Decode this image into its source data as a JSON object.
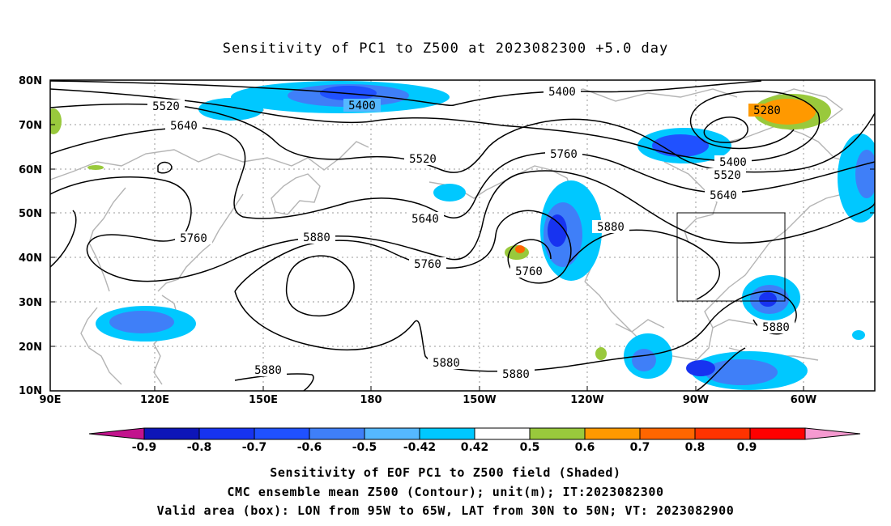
{
  "title": "Sensitivity of PC1 to Z500 at 2023082300 +5.0 day",
  "lat_labels": [
    "80N",
    "70N",
    "60N",
    "50N",
    "40N",
    "30N",
    "20N",
    "10N"
  ],
  "lon_labels": [
    "90E",
    "120E",
    "150E",
    "180",
    "150W",
    "120W",
    "90W",
    "60W"
  ],
  "contour_labels": [
    "5400",
    "5520",
    "5640",
    "5400",
    "5520",
    "5760",
    "5280",
    "5400",
    "5520",
    "5640",
    "5760",
    "5880",
    "5640",
    "5760",
    "5880",
    "5760",
    "5880",
    "5880",
    "5880",
    "5880"
  ],
  "colorbar": {
    "labels": [
      "-0.9",
      "-0.8",
      "-0.7",
      "-0.6",
      "-0.5",
      "-0.42",
      "0.42",
      "0.5",
      "0.6",
      "0.7",
      "0.8",
      "0.9"
    ],
    "colors": [
      "#c2138d",
      "#0d15b8",
      "#1733f0",
      "#2051ff",
      "#3f7ff8",
      "#55b8ff",
      "#00c8ff",
      "#ffffff",
      "#99c93c",
      "#ff9900",
      "#ff6600",
      "#ff3300",
      "#ff0000",
      "#f59ad0"
    ]
  },
  "captions": [
    "Sensitivity of EOF PC1 to Z500 field (Shaded)",
    "CMC ensemble mean Z500 (Contour); unit(m); IT:2023082300",
    "Valid area (box): LON from 95W to 65W, LAT from 30N to 50N; VT: 2023082900"
  ]
}
